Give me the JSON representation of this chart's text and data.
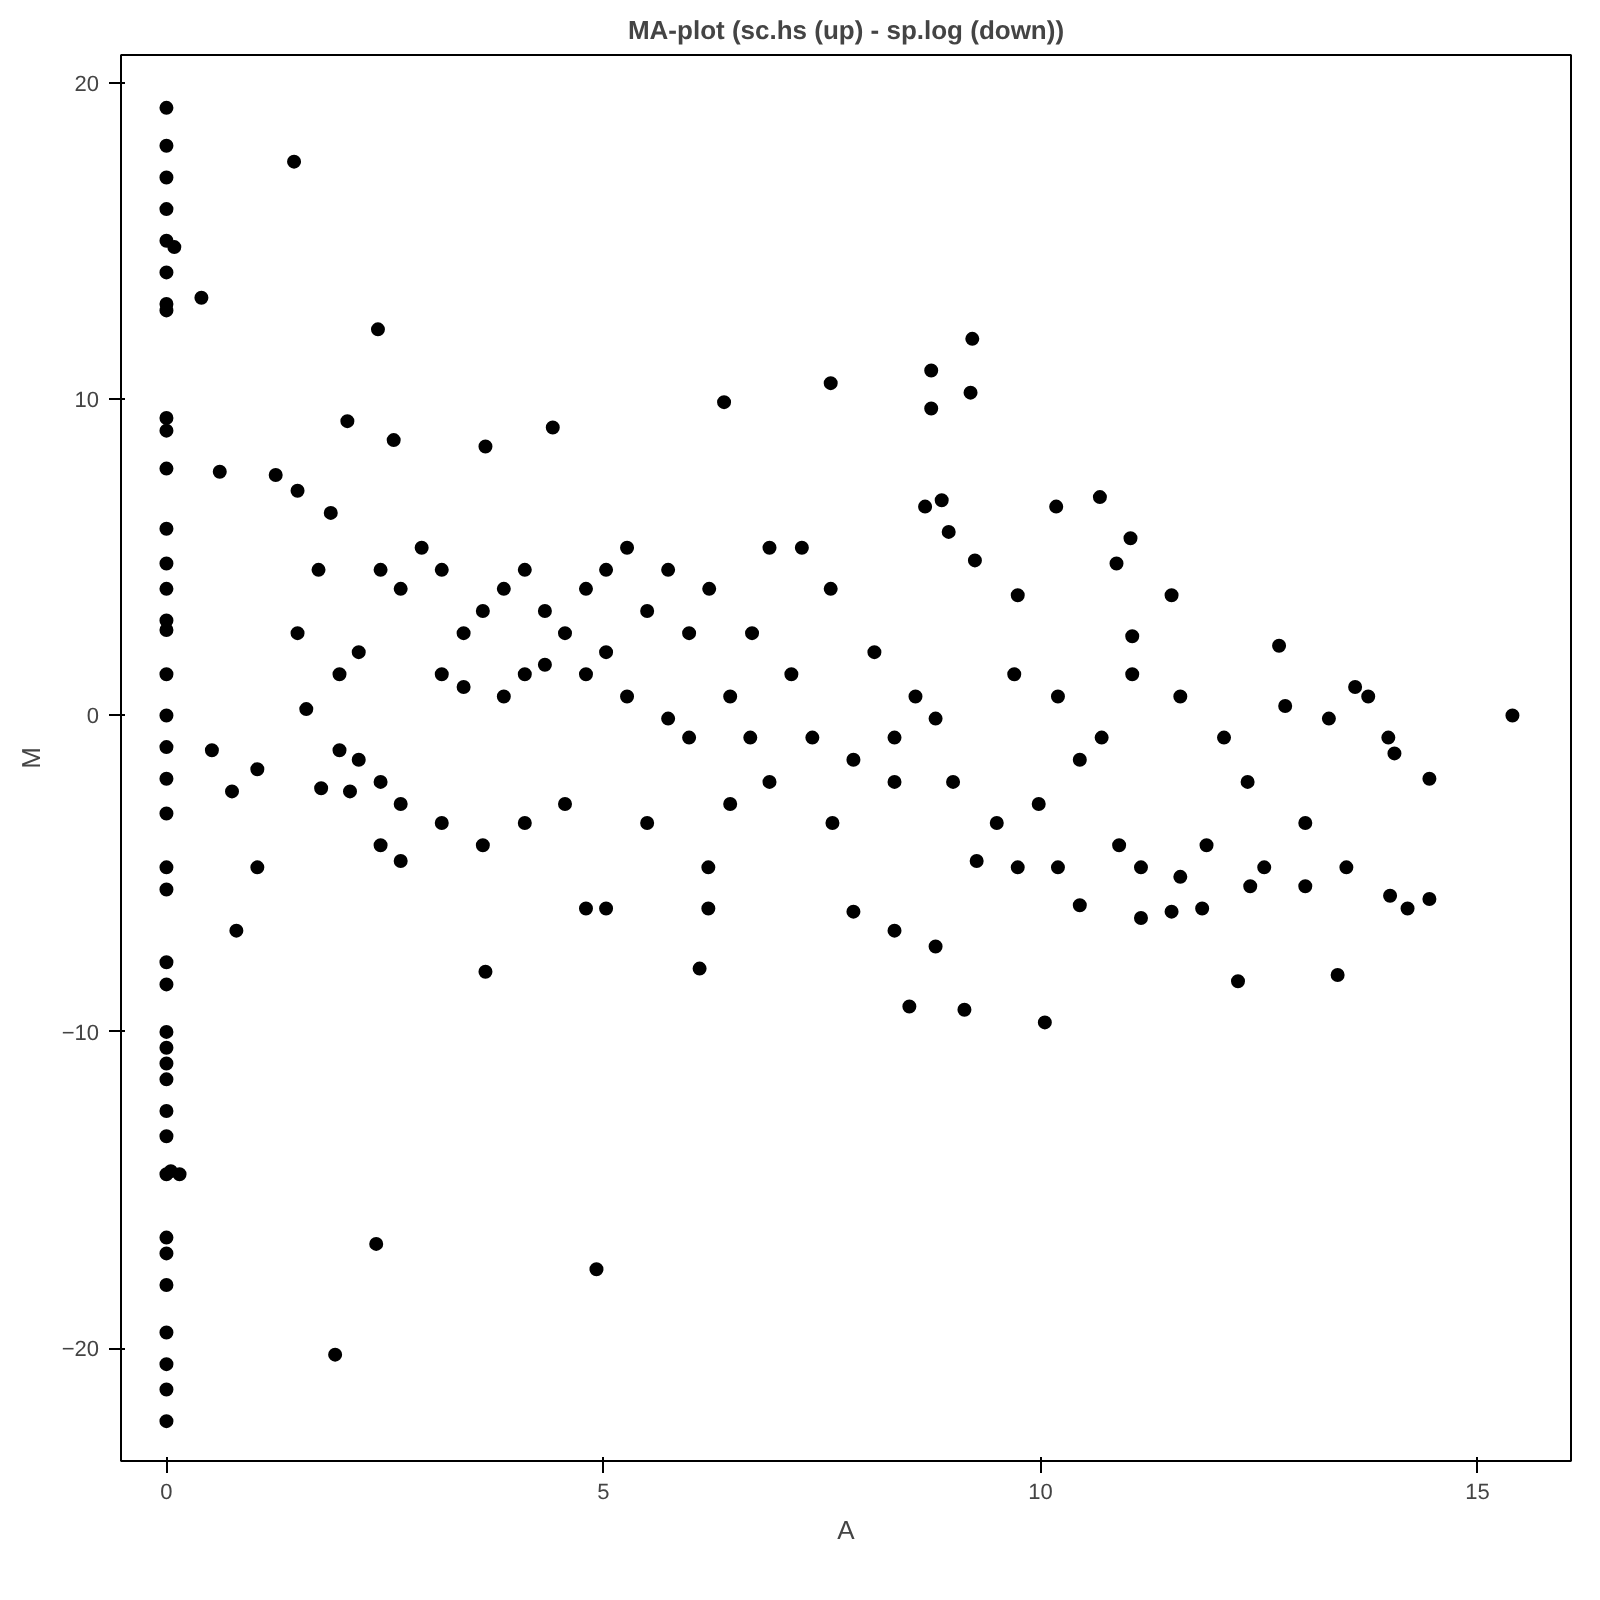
{
  "chart_data": {
    "type": "scatter",
    "title": "MA-plot (sc.hs (up) - sp.log (down))",
    "xlabel": "A",
    "ylabel": "M",
    "x": [
      0,
      0,
      0,
      0,
      0,
      0,
      0,
      0,
      0,
      0,
      0,
      0,
      0,
      0,
      0,
      0,
      0,
      0,
      0,
      0,
      0,
      0,
      0,
      0,
      0,
      0,
      0,
      0,
      0,
      0,
      0,
      0,
      0,
      0,
      0,
      0,
      0,
      0,
      0,
      1.46,
      0.09,
      0.4,
      2.42,
      2.6,
      2.07,
      0.61,
      1.25,
      1.5,
      1.88,
      3.65,
      4.42,
      6.38,
      7.6,
      8.75,
      9.22,
      8.75,
      9.2,
      0.05,
      0.15,
      2.4,
      1.93,
      4.92,
      3.65,
      6.1,
      1.04,
      0.8,
      0.52,
      0.75,
      1.77,
      15.4,
      14.05,
      14.45,
      14.2,
      14.45,
      14.0,
      13.6,
      13.3,
      13.75,
      12.73,
      12.8,
      13.4,
      12.26,
      10.05,
      9.13,
      8.5,
      10.45,
      11.15,
      11.5,
      11.85,
      12.4,
      10.7,
      11.05,
      11.5,
      11.03,
      10.68,
      10.18,
      10.87,
      8.87,
      8.95,
      9.25,
      11.05,
      9.74,
      9.7,
      10.45,
      11.9,
      12.37,
      13.03,
      11.6,
      9.74,
      9.27,
      8.8,
      8.33,
      7.86,
      7.62,
      8.33,
      8.57,
      8.1,
      7.6,
      7.27,
      6.9,
      6.7,
      7.15,
      6.45,
      6.2,
      6.2,
      5.03,
      4.8,
      5.5,
      4.56,
      4.1,
      3.62,
      3.15,
      2.68,
      2.45,
      2.45,
      2.68,
      2.2,
      2.1,
      1.98,
      2.2,
      2.45,
      2.68,
      2.92,
      3.15,
      3.4,
      3.62,
      3.86,
      4.1,
      4.33,
      4.56,
      4.8,
      5.03,
      5.27,
      5.5,
      5.74,
      5.98,
      6.21,
      3.15,
      3.4,
      3.86,
      4.1,
      4.33,
      4.8,
      5.03,
      5.27,
      5.74,
      5.98,
      6.45,
      6.68,
      6.9,
      7.39,
      7.86,
      8.33,
      8.8,
      9.0,
      9.5,
      9.98,
      10.2,
      10.9,
      11.15,
      12.56,
      13.03,
      13.5,
      12.1,
      11.6,
      10.2,
      13.98,
      8.68,
      1.5,
      1.74,
      1.04,
      1.6,
      1.98
    ],
    "values": [
      19.2,
      18,
      17,
      16,
      15,
      14,
      13,
      12.8,
      9.4,
      9,
      7.8,
      5.9,
      4.8,
      4,
      3,
      2.7,
      1.3,
      0,
      -1,
      -2,
      -3.1,
      -4.8,
      -5.5,
      -7.8,
      -8.5,
      -10,
      -10.5,
      -11,
      -11.5,
      -12.5,
      -13.3,
      -14.5,
      -16.5,
      -17,
      -18,
      -19.5,
      -20.5,
      -21.3,
      -22.3,
      17.5,
      14.8,
      13.2,
      12.2,
      8.7,
      9.3,
      7.7,
      7.6,
      7.1,
      6.4,
      8.5,
      9.1,
      9.9,
      10.5,
      10.9,
      11.9,
      9.7,
      10.2,
      -14.4,
      -14.5,
      -16.7,
      -20.2,
      -17.5,
      -8.1,
      -8,
      -4.8,
      -6.8,
      -1.1,
      -2.4,
      -2.3,
      0,
      -1.2,
      -2,
      -6.1,
      -5.8,
      -5.7,
      0.9,
      -0.1,
      0.6,
      2.2,
      0.3,
      -8.2,
      -8.4,
      -9.7,
      -9.3,
      -9.2,
      -6,
      -6.4,
      -6.2,
      -6.1,
      -5.4,
      -0.7,
      1.3,
      3.8,
      5.6,
      6.9,
      6.6,
      4.8,
      6.8,
      5.8,
      4.9,
      2.5,
      3.8,
      1.3,
      -1.4,
      -4.1,
      -2.1,
      -3.4,
      -5.1,
      -4.8,
      -4.6,
      -7.3,
      -6.8,
      -6.2,
      -3.4,
      -2.1,
      0.6,
      2,
      4,
      5.3,
      5.3,
      2.6,
      1.3,
      -2.8,
      -4.8,
      -6.1,
      -6.1,
      -6.1,
      -3.4,
      -2.8,
      -3.4,
      -4.1,
      -3.4,
      -2.8,
      -2.1,
      -4.1,
      -4.6,
      -1.4,
      -2.4,
      1.3,
      2,
      4.6,
      4,
      5.3,
      4.6,
      2.6,
      3.3,
      4,
      4.6,
      3.3,
      2.6,
      4,
      4.6,
      5.3,
      3.3,
      4.6,
      2.6,
      4,
      1.3,
      0.9,
      0.6,
      1.3,
      1.6,
      1.3,
      2,
      0.6,
      -0.1,
      -0.7,
      0.6,
      -0.7,
      -2.1,
      -0.7,
      -1.4,
      -0.7,
      -0.1,
      -2.1,
      -3.4,
      -2.8,
      -4.8,
      -4.1,
      -4.8,
      -4.8,
      -5.4,
      -4.8,
      -0.7,
      0.6,
      0.6,
      -0.7,
      6.6,
      2.6,
      4.6,
      -1.7,
      0.2,
      -1.1
    ],
    "color": "#000000",
    "marker": "circle",
    "grid": false,
    "xlim": [
      -0.52,
      16.07
    ],
    "ylim": [
      -23.56,
      20.87
    ],
    "xticks": [
      0,
      5,
      10,
      15
    ],
    "yticks": [
      -20,
      -10,
      0,
      10,
      20
    ]
  }
}
